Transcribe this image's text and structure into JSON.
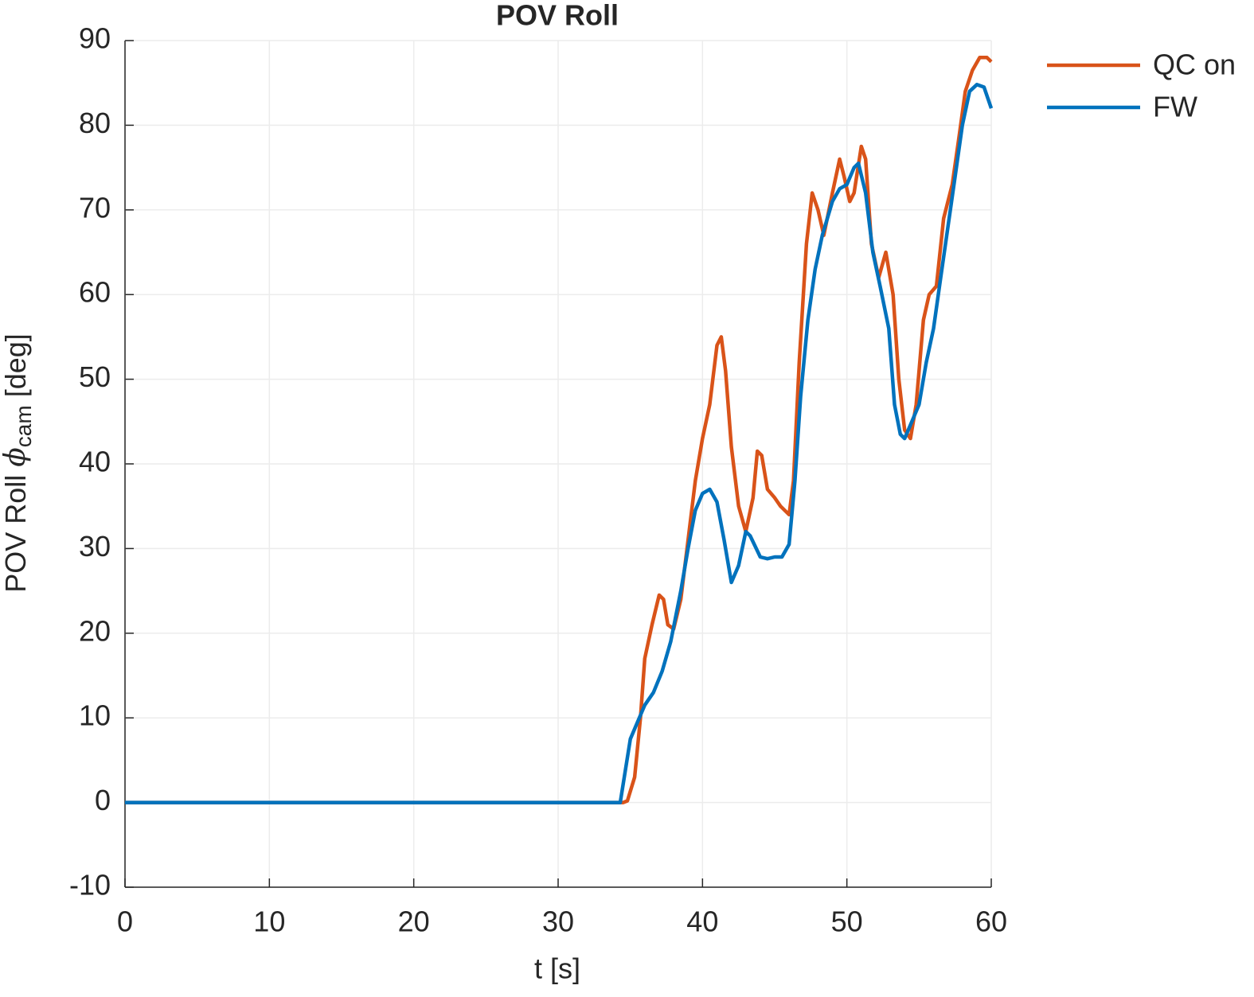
{
  "chart_data": {
    "type": "line",
    "title": "POV Roll",
    "xlabel": "t [s]",
    "ylabel": {
      "main": "POV Roll",
      "symbol": "ϕ",
      "subscript": "cam",
      "suffix": "[deg]"
    },
    "xlim": [
      0,
      60
    ],
    "xticks": [
      0,
      10,
      20,
      30,
      40,
      50,
      60
    ],
    "ylim": [
      -10,
      90
    ],
    "yticks": [
      -10,
      0,
      10,
      20,
      30,
      40,
      50,
      60,
      70,
      80,
      90
    ],
    "grid": true,
    "legend": "outside-top-right",
    "series": [
      {
        "name": "QC on",
        "color": "#D95319",
        "x": [
          0,
          34.5,
          34.8,
          35.3,
          35.7,
          36,
          36.5,
          37,
          37.3,
          37.6,
          38,
          38.5,
          39,
          39.5,
          40,
          40.5,
          41,
          41.3,
          41.6,
          42,
          42.5,
          43,
          43.5,
          43.8,
          44.1,
          44.5,
          45,
          45.4,
          46,
          46.3,
          46.7,
          47.2,
          47.6,
          48,
          48.4,
          49,
          49.5,
          49.8,
          50.2,
          50.5,
          51,
          51.3,
          51.7,
          52.2,
          52.7,
          53.2,
          53.6,
          54,
          54.4,
          54.8,
          55.3,
          55.7,
          56.2,
          56.7,
          57.3,
          57.8,
          58.2,
          58.7,
          59.2,
          59.7,
          60
        ],
        "values": [
          0,
          0,
          0.2,
          3,
          10,
          17,
          21,
          24.5,
          24,
          21,
          20.5,
          24,
          31,
          38,
          43,
          47,
          54,
          55,
          51,
          42,
          35,
          32,
          36,
          41.5,
          41,
          37,
          36,
          35,
          34,
          38,
          52,
          66,
          72,
          70,
          67,
          72,
          76,
          74,
          71,
          72,
          77.5,
          76,
          66,
          62,
          65,
          60,
          50,
          44,
          43,
          47,
          57,
          60,
          61,
          69,
          73,
          79,
          84,
          86.5,
          88,
          88,
          87.5
        ]
      },
      {
        "name": "FW",
        "color": "#0072BD",
        "x": [
          0,
          34.3,
          35,
          35.5,
          36,
          36.6,
          37.2,
          37.8,
          38.5,
          39,
          39.5,
          40,
          40.5,
          41,
          41.5,
          42,
          42.5,
          43,
          43.3,
          44,
          44.5,
          45,
          45.5,
          46,
          46.4,
          46.8,
          47.3,
          47.8,
          48.3,
          49,
          49.5,
          50,
          50.5,
          50.8,
          51.3,
          51.8,
          52.3,
          52.9,
          53.3,
          53.7,
          54,
          54.5,
          55,
          55.5,
          56,
          56.5,
          57,
          57.5,
          58,
          58.5,
          59,
          59.5,
          60
        ],
        "values": [
          0,
          0,
          7.5,
          9.5,
          11.5,
          13,
          15.5,
          19,
          25,
          30,
          34.5,
          36.5,
          37,
          35.5,
          31,
          26,
          28,
          32,
          31.5,
          29,
          28.8,
          29,
          29,
          30.5,
          38,
          48,
          57,
          63,
          67,
          71,
          72.5,
          73,
          75,
          75.5,
          72,
          65,
          61,
          56,
          47,
          43.5,
          43,
          45,
          47,
          52,
          56,
          62,
          68,
          74,
          80,
          84,
          84.8,
          84.5,
          82
        ]
      }
    ]
  }
}
